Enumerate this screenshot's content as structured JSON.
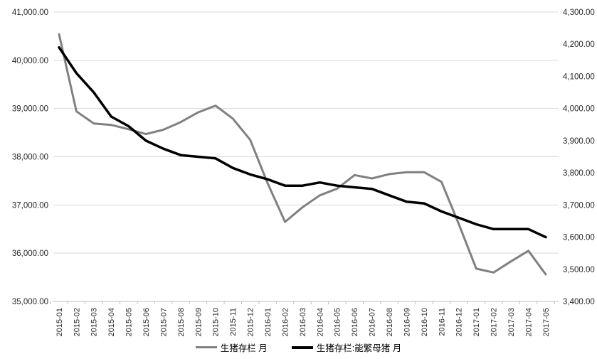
{
  "chart_data": {
    "type": "line",
    "title": "",
    "xlabel": "",
    "ylabel": "",
    "grid": true,
    "legend_position": "bottom",
    "categories": [
      "2015-01",
      "2015-02",
      "2015-03",
      "2015-04",
      "2015-05",
      "2015-06",
      "2015-07",
      "2015-08",
      "2015-09",
      "2015-10",
      "2015-11",
      "2015-12",
      "2016-01",
      "2016-02",
      "2016-03",
      "2016-04",
      "2016-05",
      "2016-06",
      "2016-07",
      "2016-08",
      "2016-09",
      "2016-10",
      "2016-11",
      "2016-12",
      "2017-01",
      "2017-02",
      "2017-03",
      "2017-04",
      "2017-05"
    ],
    "series": [
      {
        "name": "生猪存栏 月",
        "axis": "left",
        "color": "#808080",
        "stroke_width": 3,
        "values": [
          40540,
          38940,
          38690,
          38660,
          38570,
          38470,
          38560,
          38720,
          38920,
          39060,
          38790,
          38350,
          37450,
          36650,
          36950,
          37200,
          37340,
          37620,
          37550,
          37640,
          37680,
          37680,
          37480,
          36600,
          35680,
          35600,
          35830,
          36050,
          35560
        ]
      },
      {
        "name": "生猪存栏:能繁母猪 月",
        "axis": "right",
        "color": "#000000",
        "stroke_width": 3.5,
        "values": [
          4190,
          4110,
          4050,
          3975,
          3945,
          3900,
          3875,
          3855,
          3850,
          3845,
          3815,
          3795,
          3780,
          3760,
          3760,
          3770,
          3760,
          3755,
          3750,
          3730,
          3710,
          3705,
          3680,
          3660,
          3640,
          3625,
          3625,
          3625,
          3600
        ]
      }
    ],
    "left_axis": {
      "min": 35000,
      "max": 41000,
      "step": 1000,
      "tick_labels_top_to_bottom": [
        "41,000.00",
        "40,000.00",
        "39,000.00",
        "38,000.00",
        "37,000.00",
        "36,000.00",
        "35,000.00"
      ]
    },
    "right_axis": {
      "min": 3400,
      "max": 4300,
      "step": 100,
      "tick_labels_top_to_bottom": [
        "4,300.00",
        "4,200.00",
        "4,100.00",
        "4,000.00",
        "3,900.00",
        "3,800.00",
        "3,700.00",
        "3,600.00",
        "3,500.00",
        "3,400.00"
      ]
    }
  },
  "colors": {
    "gridline": "#d9d9d9",
    "axis_line": "#bfbfbf",
    "axis_text": "#262626",
    "background": "#ffffff"
  }
}
